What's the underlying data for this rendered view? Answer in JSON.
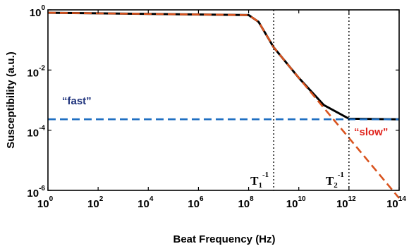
{
  "chart_data": {
    "type": "line",
    "xlabel": "Beat Frequency (Hz)",
    "ylabel": "Susceptibility (a.u.)",
    "x_scale": "log",
    "y_scale": "log",
    "xlim": [
      1,
      100000000000000
    ],
    "ylim": [
      1e-06,
      1
    ],
    "x_ticks": [
      {
        "base": "10",
        "exp": "0"
      },
      {
        "base": "10",
        "exp": "2"
      },
      {
        "base": "10",
        "exp": "4"
      },
      {
        "base": "10",
        "exp": "6"
      },
      {
        "base": "10",
        "exp": "8"
      },
      {
        "base": "10",
        "exp": "10"
      },
      {
        "base": "10",
        "exp": "12"
      },
      {
        "base": "10",
        "exp": "14"
      }
    ],
    "y_ticks": [
      {
        "base": "10",
        "exp": "0"
      },
      {
        "base": "10",
        "exp": "-2"
      },
      {
        "base": "10",
        "exp": "-4"
      },
      {
        "base": "10",
        "exp": "-6"
      }
    ],
    "series": [
      {
        "name": "",
        "style": "solid",
        "color": "#000000",
        "x": [
          1,
          100000000,
          250000000,
          1000000000,
          10000000000,
          100000000000,
          1000000000000,
          100000000000000
        ],
        "y": [
          0.8,
          0.67,
          0.4,
          0.057,
          0.0055,
          0.00068,
          0.00024,
          0.00023
        ]
      },
      {
        "name": "slow",
        "style": "dashed",
        "color": "#d9531e",
        "x": [
          1,
          100000000,
          250000000,
          1000000000,
          10000000000,
          100000000000,
          1000000000000,
          100000000000000
        ],
        "y": [
          0.8,
          0.67,
          0.4,
          0.057,
          0.0055,
          0.00055,
          5.5e-05,
          5.5e-07
        ]
      },
      {
        "name": "fast",
        "style": "dashed",
        "color": "#1f6fc1",
        "x": [
          1,
          100000000000000
        ],
        "y": [
          0.00023,
          0.00023
        ]
      }
    ],
    "vlines": [
      {
        "x": 1000000000,
        "label_main": "T",
        "label_sub": "1",
        "label_sup": "-1"
      },
      {
        "x": 1000000000000,
        "label_main": "T",
        "label_sub": "2",
        "label_sup": "-1"
      }
    ],
    "annotations": {
      "fast": {
        "text": "“fast”",
        "color": "#1b2f7a"
      },
      "slow": {
        "text": "“slow”",
        "color": "#e0231c"
      }
    },
    "grid": false,
    "legend": "none"
  }
}
